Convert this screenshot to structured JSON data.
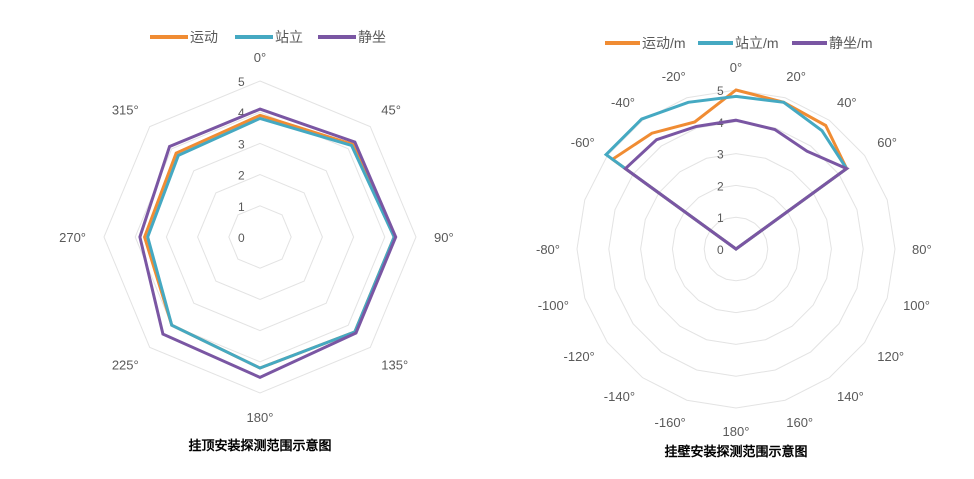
{
  "colors": {
    "orange": "#F08C33",
    "cyan": "#45A9C2",
    "purple": "#7A56A3",
    "grid": "#E3E3E3"
  },
  "chart_data": [
    {
      "type": "radar",
      "title": "挂顶安装探测范围示意图",
      "categories": [
        "0°",
        "45°",
        "90°",
        "135°",
        "180°",
        "225°",
        "270°",
        "315°"
      ],
      "rlim": [
        0,
        5
      ],
      "rticks": [
        "0",
        "1",
        "2",
        "3",
        "4",
        "5"
      ],
      "grid": true,
      "legend": "top",
      "series": [
        {
          "name": "运动",
          "color": "#F08C33",
          "values": [
            3.9,
            4.2,
            4.3,
            4.3,
            4.2,
            4.0,
            3.7,
            3.8
          ]
        },
        {
          "name": "站立",
          "color": "#45A9C2",
          "values": [
            3.8,
            4.15,
            4.3,
            4.3,
            4.2,
            4.0,
            3.6,
            3.7
          ]
        },
        {
          "name": "静坐",
          "color": "#7A56A3",
          "values": [
            4.1,
            4.3,
            4.35,
            4.35,
            4.5,
            4.4,
            3.85,
            4.1
          ]
        }
      ]
    },
    {
      "type": "radar",
      "title": "挂壁安装探测范围示意图",
      "categories": [
        "0°",
        "20°",
        "40°",
        "60°",
        "",
        "80°",
        "100°",
        "120°",
        "140°",
        "160°",
        "180°",
        "-160°",
        "-140°",
        "-120°",
        "-100°",
        "-80°",
        "",
        "-60°",
        "-40°",
        "-20°"
      ],
      "rlim": [
        0,
        5
      ],
      "rticks": [
        "0",
        "1",
        "2",
        "3",
        "4",
        "5"
      ],
      "grid": true,
      "legend": "top",
      "series": [
        {
          "name": "运动/m",
          "color": "#F08C33",
          "values": [
            5.0,
            4.85,
            4.8,
            4.3,
            0,
            0,
            0,
            0,
            0,
            0,
            0,
            0,
            0,
            0,
            0,
            0,
            0,
            4.8,
            4.5,
            4.2
          ]
        },
        {
          "name": "站立/m",
          "color": "#45A9C2",
          "values": [
            4.8,
            4.85,
            4.6,
            4.3,
            0,
            0,
            0,
            0,
            0,
            0,
            0,
            0,
            0,
            0,
            0,
            0,
            0,
            5.05,
            5.05,
            4.85
          ]
        },
        {
          "name": "静坐/m",
          "color": "#7A56A3",
          "values": [
            4.05,
            3.95,
            3.8,
            4.3,
            0,
            0,
            0,
            0,
            0,
            0,
            0,
            0,
            0,
            0,
            0,
            0,
            0,
            4.3,
            4.25,
            4.05
          ]
        }
      ]
    }
  ]
}
